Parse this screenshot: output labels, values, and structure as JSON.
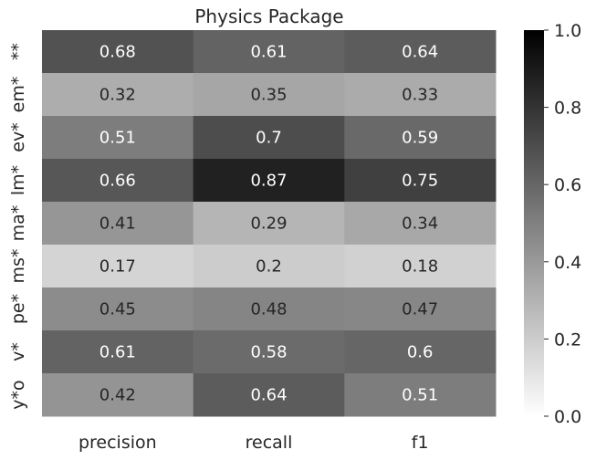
{
  "chart_data": {
    "type": "heatmap",
    "title": "Physics Package",
    "x_categories": [
      "precision",
      "recall",
      "f1"
    ],
    "y_categories": [
      "**",
      "em*",
      "ev*",
      "lm*",
      "ma*",
      "ms*",
      "pe*",
      "v*",
      "y*o"
    ],
    "values": [
      [
        0.68,
        0.61,
        0.64
      ],
      [
        0.32,
        0.35,
        0.33
      ],
      [
        0.51,
        0.7,
        0.59
      ],
      [
        0.66,
        0.87,
        0.75
      ],
      [
        0.41,
        0.29,
        0.34
      ],
      [
        0.17,
        0.2,
        0.18
      ],
      [
        0.45,
        0.48,
        0.47
      ],
      [
        0.61,
        0.58,
        0.6
      ],
      [
        0.42,
        0.64,
        0.51
      ]
    ],
    "colormap": "Greys",
    "vmin": 0.0,
    "vmax": 1.0,
    "colorbar_ticks": [
      "0.0",
      "0.2",
      "0.4",
      "0.6",
      "0.8",
      "1.0"
    ],
    "xlabel": "",
    "ylabel": ""
  }
}
